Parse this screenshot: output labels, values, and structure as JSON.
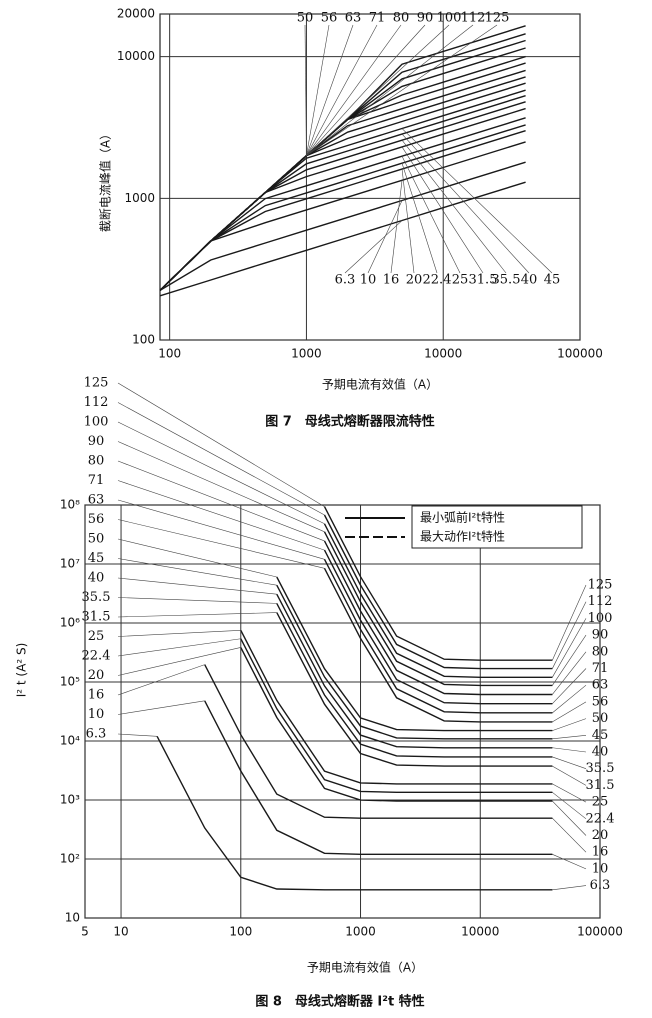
{
  "chart_data": [
    {
      "type": "line",
      "xscale": "log",
      "yscale": "log",
      "grid": true,
      "color": "#1a1a1a",
      "ylabel": "截断电流峰值（A）",
      "xlabel": "予期电流有效值（A）",
      "caption": "图 7　母线式熔断器限流特性",
      "xlim": [
        85,
        100000
      ],
      "ylim": [
        100,
        20000
      ],
      "xticks": [
        100,
        1000,
        10000,
        100000
      ],
      "yticks": [
        100,
        1000,
        10000,
        20000
      ],
      "x": [
        85,
        200,
        500,
        1000,
        2000,
        5000,
        10000,
        40000
      ],
      "series": [
        {
          "name": "6.3",
          "values": [
            205,
            265,
            350,
            430,
            529,
            697,
            858,
            1300
          ]
        },
        {
          "name": "10",
          "values": [
            224,
            367,
            484,
            596,
            733,
            965,
            1188,
            1800
          ]
        },
        {
          "name": "16",
          "values": [
            224,
            500,
            673,
            828,
            1018,
            1340,
            1650,
            2500
          ]
        },
        {
          "name": "20",
          "values": [
            224,
            500,
            807,
            993,
            1221,
            1608,
            1980,
            3000
          ]
        },
        {
          "name": "22.4",
          "values": [
            224,
            500,
            888,
            1092,
            1343,
            1769,
            2178,
            3300
          ]
        },
        {
          "name": "25",
          "values": [
            224,
            500,
            995,
            1225,
            1506,
            1983,
            2442,
            3700
          ]
        },
        {
          "name": "31.5",
          "values": [
            224,
            500,
            1100,
            1423,
            1750,
            2305,
            2838,
            4300
          ]
        },
        {
          "name": "35.5",
          "values": [
            224,
            500,
            1100,
            1589,
            1954,
            2573,
            3168,
            4800
          ]
        },
        {
          "name": "40",
          "values": [
            224,
            500,
            1100,
            1754,
            2157,
            2841,
            3498,
            5300
          ]
        },
        {
          "name": "45",
          "values": [
            224,
            500,
            1100,
            1920,
            2361,
            3109,
            3828,
            5800
          ]
        },
        {
          "name": "50",
          "values": [
            224,
            500,
            1100,
            2000,
            2646,
            3484,
            4290,
            6500
          ]
        },
        {
          "name": "56",
          "values": [
            224,
            500,
            1100,
            2000,
            2930,
            3859,
            4752,
            7200
          ]
        },
        {
          "name": "63",
          "values": [
            224,
            500,
            1100,
            2000,
            3256,
            4288,
            5280,
            8000
          ]
        },
        {
          "name": "71",
          "values": [
            224,
            500,
            1100,
            2000,
            3600,
            4824,
            5940,
            9000
          ]
        },
        {
          "name": "80",
          "values": [
            224,
            500,
            1100,
            2000,
            3600,
            5360,
            6600,
            10000
          ]
        },
        {
          "name": "90",
          "values": [
            224,
            500,
            1100,
            2000,
            3600,
            6164,
            7590,
            11500
          ]
        },
        {
          "name": "100",
          "values": [
            224,
            500,
            1100,
            2000,
            3600,
            6968,
            8580,
            13000
          ]
        },
        {
          "name": "112",
          "values": [
            224,
            500,
            1100,
            2000,
            3600,
            7772,
            9570,
            14500
          ]
        },
        {
          "name": "125",
          "values": [
            224,
            500,
            1100,
            2000,
            3600,
            8844,
            10890,
            16500
          ]
        }
      ]
    },
    {
      "type": "line",
      "xscale": "log",
      "yscale": "log",
      "grid": true,
      "color": "#1a1a1a",
      "ylabel": "I² t (A² S)",
      "xlabel": "予期电流有效值（A）",
      "caption": "图 8　母线式熔断器 I²t 特性",
      "legend": [
        "最小弧前I²t特性",
        "最大动作I²t特性"
      ],
      "xlim": [
        5,
        100000
      ],
      "ylim": [
        10,
        100000000
      ],
      "xticks": [
        5,
        10,
        100,
        1000,
        10000,
        100000
      ],
      "yticks": [
        10,
        {
          "value": 100,
          "label": "10²"
        },
        {
          "value": 1000,
          "label": "10³"
        },
        {
          "value": 10000,
          "label": "10⁴"
        },
        {
          "value": 100000,
          "label": "10⁵"
        },
        {
          "value": 1000000,
          "label": "10⁶"
        },
        {
          "value": 10000000,
          "label": "10⁷"
        },
        {
          "value": 100000000,
          "label": "10⁸"
        }
      ],
      "x": [
        10,
        20,
        50,
        100,
        200,
        500,
        1000,
        2000,
        5000,
        10000,
        40000
      ],
      "series": [
        {
          "name": "6.3",
          "values": [
            null,
            12000,
            336,
            49,
            31,
            30,
            30,
            30,
            30,
            30,
            30
          ]
        },
        {
          "name": "10",
          "values": [
            null,
            null,
            48000,
            3100,
            307,
            125,
            120,
            120,
            120,
            120,
            120
          ]
        },
        {
          "name": "16",
          "values": [
            null,
            null,
            197000,
            12800,
            1260,
            512,
            492,
            492,
            492,
            492,
            492
          ]
        },
        {
          "name": "20",
          "values": [
            null,
            null,
            null,
            385000,
            25000,
            1570,
            998,
            960,
            960,
            960,
            960
          ]
        },
        {
          "name": "22.4",
          "values": [
            null,
            null,
            null,
            541000,
            35100,
            2210,
            1400,
            1350,
            1350,
            1350,
            1350
          ]
        },
        {
          "name": "25",
          "values": [
            null,
            null,
            null,
            752000,
            48800,
            3080,
            1950,
            1875,
            1875,
            1875,
            1875
          ]
        },
        {
          "name": "31.5",
          "values": [
            null,
            null,
            null,
            null,
            1500000,
            42000,
            6150,
            3900,
            3750,
            3750,
            3750
          ]
        },
        {
          "name": "35.5",
          "values": [
            null,
            null,
            null,
            null,
            2150000,
            60100,
            8810,
            5580,
            5370,
            5370,
            5370
          ]
        },
        {
          "name": "40",
          "values": [
            null,
            null,
            null,
            null,
            3080000,
            86000,
            12600,
            7990,
            7680,
            7680,
            7680
          ]
        },
        {
          "name": "45",
          "values": [
            null,
            null,
            null,
            null,
            4370000,
            122000,
            17900,
            11300,
            10900,
            10900,
            10900
          ]
        },
        {
          "name": "50",
          "values": [
            null,
            null,
            null,
            null,
            6020000,
            168000,
            24600,
            15600,
            15000,
            15000,
            15000
          ]
        },
        {
          "name": "56",
          "values": [
            null,
            null,
            null,
            null,
            null,
            8460000,
            549000,
            54000,
            21900,
            21100,
            21100
          ]
        },
        {
          "name": "63",
          "values": [
            null,
            null,
            null,
            null,
            null,
            12000000,
            780000,
            76800,
            31200,
            30000,
            30000
          ]
        },
        {
          "name": "71",
          "values": [
            null,
            null,
            null,
            null,
            null,
            17200000,
            1120000,
            110000,
            44600,
            42900,
            42900
          ]
        },
        {
          "name": "80",
          "values": [
            null,
            null,
            null,
            null,
            null,
            24600000,
            1600000,
            157000,
            63900,
            61400,
            61400
          ]
        },
        {
          "name": "90",
          "values": [
            null,
            null,
            null,
            null,
            null,
            35100000,
            2280000,
            224000,
            91000,
            87500,
            87500
          ]
        },
        {
          "name": "100",
          "values": [
            null,
            null,
            null,
            null,
            null,
            48100000,
            3120000,
            307000,
            125000,
            120000,
            120000
          ]
        },
        {
          "name": "112",
          "values": [
            null,
            null,
            null,
            null,
            null,
            67800000,
            4390000,
            433000,
            176000,
            169000,
            169000
          ]
        },
        {
          "name": "125",
          "values": [
            null,
            null,
            null,
            null,
            null,
            93800000,
            6080000,
            599000,
            243000,
            234000,
            234000
          ]
        }
      ]
    }
  ]
}
